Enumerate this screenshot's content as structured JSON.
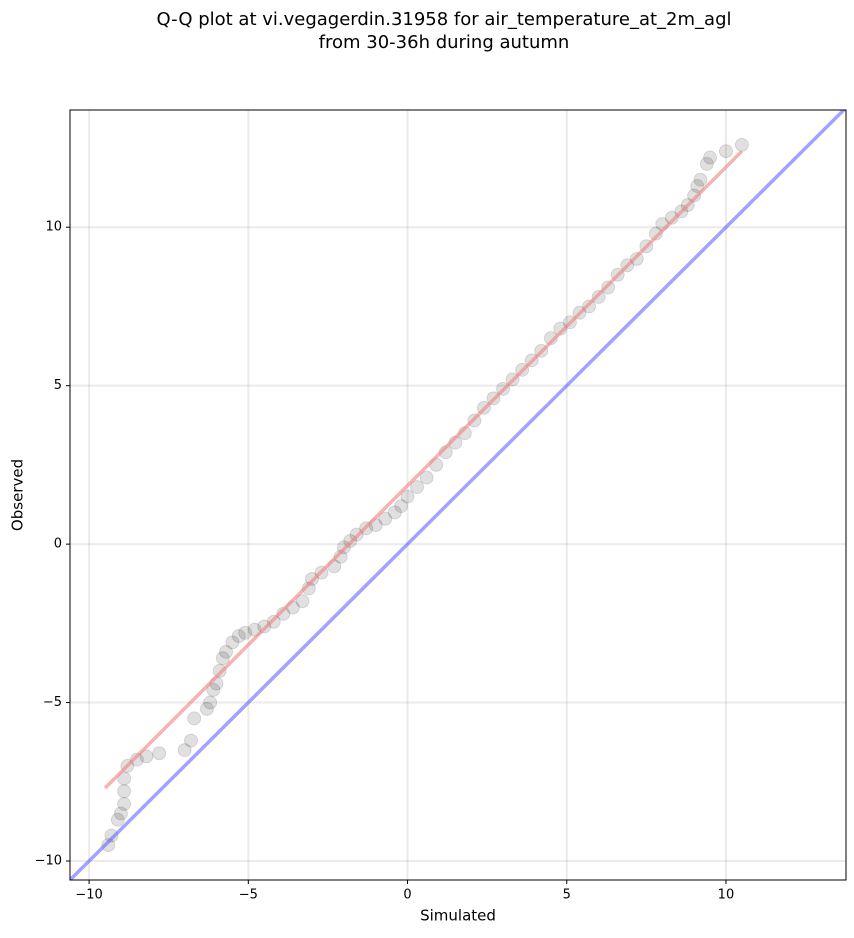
{
  "chart_data": {
    "type": "scatter",
    "title": [
      "Q-Q plot at vi.vegagerdin.31958 for air_temperature_at_2m_agl",
      "from 30-36h during autumn"
    ],
    "x_label": "Simulated",
    "y_label": "Observed",
    "xlim": [
      -10.6,
      13.77
    ],
    "ylim": [
      -10.6,
      13.7
    ],
    "xticks": [
      {
        "value": -10,
        "label": "−10"
      },
      {
        "value": -5,
        "label": "−5"
      },
      0,
      5,
      10
    ],
    "yticks": [
      {
        "value": -10,
        "label": "−10"
      },
      {
        "value": -5,
        "label": "−5"
      },
      0,
      5,
      10
    ],
    "grid": true,
    "color": "#000000",
    "x": [
      -9.4,
      -9.3,
      -9.1,
      -9.0,
      -8.9,
      -8.9,
      -8.9,
      -8.8,
      -8.5,
      -8.2,
      -7.8,
      -7.0,
      -6.8,
      -6.7,
      -6.3,
      -6.2,
      -6.1,
      -6.0,
      -5.9,
      -5.8,
      -5.7,
      -5.5,
      -5.3,
      -5.1,
      -4.8,
      -4.5,
      -4.2,
      -3.9,
      -3.6,
      -3.3,
      -3.1,
      -3.0,
      -2.7,
      -2.3,
      -2.1,
      -2.0,
      -1.8,
      -1.6,
      -1.3,
      -1.0,
      -0.7,
      -0.4,
      -0.2,
      0,
      0.3,
      0.6,
      0.9,
      1.2,
      1.5,
      1.8,
      2.1,
      2.4,
      2.7,
      3.0,
      3.3,
      3.6,
      3.9,
      4.2,
      4.5,
      4.8,
      5.1,
      5.4,
      5.7,
      6.0,
      6.3,
      6.6,
      6.9,
      7.2,
      7.5,
      7.8,
      8.0,
      8.3,
      8.6,
      8.8,
      9.0,
      9.1,
      9.2,
      9.4,
      9.5,
      10.0,
      10.5
    ],
    "values": [
      -9.5,
      -9.2,
      -8.7,
      -8.5,
      -8.2,
      -7.8,
      -7.4,
      -7.0,
      -6.8,
      -6.7,
      -6.6,
      -6.5,
      -6.2,
      -5.5,
      -5.2,
      -5.0,
      -4.6,
      -4.4,
      -4.0,
      -3.6,
      -3.4,
      -3.1,
      -2.9,
      -2.8,
      -2.7,
      -2.6,
      -2.45,
      -2.2,
      -2.0,
      -1.8,
      -1.4,
      -1.1,
      -0.9,
      -0.7,
      -0.4,
      -0.1,
      0.1,
      0.3,
      0.5,
      0.6,
      0.8,
      1.0,
      1.2,
      1.5,
      1.8,
      2.1,
      2.5,
      2.9,
      3.2,
      3.5,
      3.9,
      4.3,
      4.6,
      4.9,
      5.2,
      5.5,
      5.8,
      6.1,
      6.5,
      6.8,
      7.0,
      7.3,
      7.5,
      7.8,
      8.1,
      8.5,
      8.8,
      9.0,
      9.4,
      9.8,
      10.1,
      10.3,
      10.5,
      10.7,
      11.0,
      11.3,
      11.5,
      12.0,
      12.2,
      12.4,
      12.6
    ],
    "lines": [
      {
        "color": "#f08080",
        "x": [
          -9.5,
          10.5
        ],
        "values": [
          -7.7,
          12.4
        ]
      },
      {
        "color": "#6666ff",
        "x": [
          -10.6,
          13.77
        ],
        "values": [
          -10.6,
          13.77
        ]
      }
    ]
  }
}
